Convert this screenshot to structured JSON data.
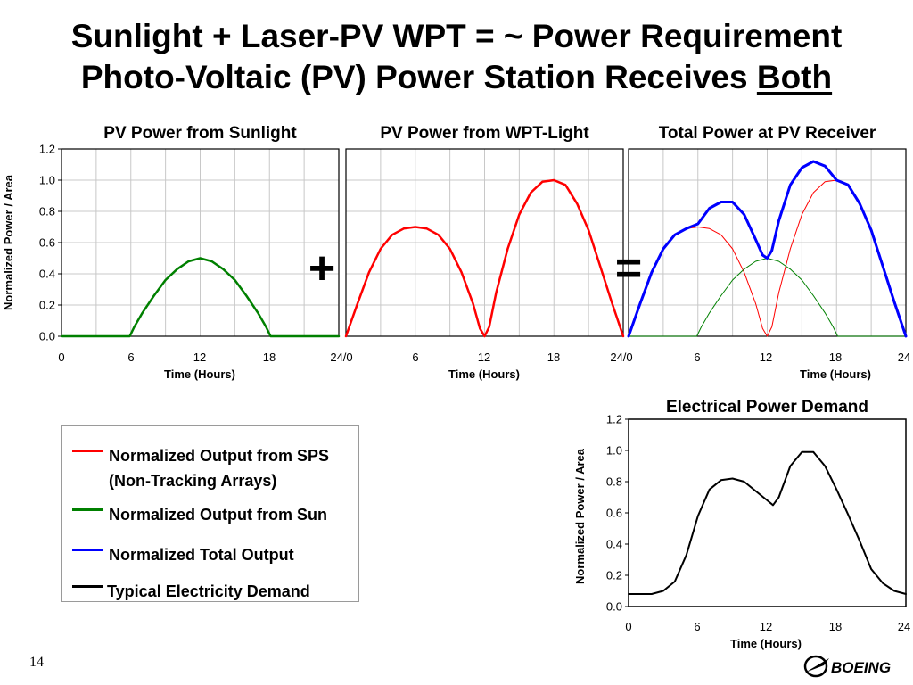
{
  "slide": {
    "title_line1": "Sunlight + Laser-PV WPT = ~ Power Requirement",
    "title_line2_prefix": "Photo-Voltaic (PV) Power Station Receives ",
    "title_line2_emph": "Both",
    "plus_sign": "+",
    "equals_sign": "=",
    "page_number": "14",
    "logo_text": "BOEING",
    "logo_icon": "boeing-logo-icon"
  },
  "legend": {
    "items": [
      {
        "color": "#ff0000",
        "lines": [
          "Normalized Output from SPS",
          "(Non-Tracking Arrays)"
        ]
      },
      {
        "color": "#008000",
        "lines": [
          "Normalized Output from Sun"
        ]
      },
      {
        "color": "#0000ff",
        "lines": [
          "Normalized Total Output"
        ]
      },
      {
        "color": "#000000",
        "lines": [
          "Typical Electricity Demand"
        ]
      }
    ]
  },
  "chart_data": [
    {
      "type": "line",
      "title": "PV Power from Sunlight",
      "xlabel": "Time (Hours)",
      "ylabel": "Normalized Power / Area",
      "xticks": [
        "0",
        "6",
        "12",
        "18",
        "24/0"
      ],
      "yticks": [
        "0.0",
        "0.2",
        "0.4",
        "0.6",
        "0.8",
        "1.0",
        "1.2"
      ],
      "xlim": [
        0,
        24
      ],
      "ylim": [
        0,
        1.2
      ],
      "grid": true,
      "series": [
        {
          "color": "#008000",
          "x": [
            0,
            5.9,
            6.3,
            7,
            8,
            9,
            10,
            11,
            12,
            13,
            14,
            15,
            16,
            17,
            17.7,
            18.1,
            24
          ],
          "y": [
            0,
            0,
            0.06,
            0.15,
            0.26,
            0.36,
            0.43,
            0.48,
            0.5,
            0.48,
            0.43,
            0.36,
            0.26,
            0.15,
            0.06,
            0,
            0
          ]
        }
      ]
    },
    {
      "type": "line",
      "title": "PV Power from WPT-Light",
      "xlabel": "Time (Hours)",
      "ylabel": "",
      "xticks": [
        "6",
        "12",
        "18",
        "24/0"
      ],
      "yticks": [],
      "xlim": [
        0,
        24
      ],
      "ylim": [
        0,
        1.2
      ],
      "grid": true,
      "series": [
        {
          "color": "#ff0000",
          "x": [
            0,
            1,
            2,
            3,
            4,
            5,
            6,
            7,
            8,
            9,
            10,
            11,
            11.6,
            12,
            12.4,
            13,
            14,
            15,
            16,
            17,
            18,
            19,
            20,
            21,
            22,
            23,
            24
          ],
          "y": [
            0,
            0.21,
            0.41,
            0.56,
            0.65,
            0.69,
            0.7,
            0.69,
            0.65,
            0.56,
            0.41,
            0.21,
            0.05,
            0,
            0.06,
            0.28,
            0.56,
            0.78,
            0.92,
            0.99,
            1.0,
            0.97,
            0.85,
            0.68,
            0.45,
            0.22,
            0
          ]
        }
      ]
    },
    {
      "type": "line",
      "title": "Total Power at PV Receiver",
      "xlabel": "Time (Hours)",
      "ylabel": "",
      "xticks": [
        "6",
        "12",
        "18",
        "24"
      ],
      "yticks": [],
      "xlim": [
        0,
        24
      ],
      "ylim": [
        0,
        1.2
      ],
      "grid": true,
      "series": [
        {
          "color": "#ff0000",
          "width": 1,
          "x": [
            0,
            1,
            2,
            3,
            4,
            5,
            6,
            7,
            8,
            9,
            10,
            11,
            11.6,
            12,
            12.4,
            13,
            14,
            15,
            16,
            17,
            18,
            19,
            20,
            21,
            22,
            23,
            24
          ],
          "y": [
            0,
            0.21,
            0.41,
            0.56,
            0.65,
            0.69,
            0.7,
            0.69,
            0.65,
            0.56,
            0.41,
            0.21,
            0.05,
            0,
            0.06,
            0.28,
            0.56,
            0.78,
            0.92,
            0.99,
            1.0,
            0.97,
            0.85,
            0.68,
            0.45,
            0.22,
            0
          ]
        },
        {
          "color": "#008000",
          "width": 1,
          "x": [
            0,
            5.9,
            6.3,
            7,
            8,
            9,
            10,
            11,
            12,
            13,
            14,
            15,
            16,
            17,
            17.7,
            18.1,
            24
          ],
          "y": [
            0,
            0,
            0.06,
            0.15,
            0.26,
            0.36,
            0.43,
            0.48,
            0.5,
            0.48,
            0.43,
            0.36,
            0.26,
            0.15,
            0.06,
            0,
            0
          ]
        },
        {
          "color": "#0000ff",
          "width": 3,
          "x": [
            0,
            1,
            2,
            3,
            4,
            5,
            6,
            7,
            8,
            9,
            10,
            11,
            11.6,
            12,
            12.4,
            13,
            14,
            15,
            16,
            17,
            18,
            19,
            20,
            21,
            22,
            23,
            24
          ],
          "y": [
            0,
            0.21,
            0.41,
            0.56,
            0.65,
            0.69,
            0.72,
            0.82,
            0.86,
            0.86,
            0.78,
            0.62,
            0.52,
            0.5,
            0.55,
            0.74,
            0.97,
            1.08,
            1.12,
            1.09,
            1.0,
            0.97,
            0.85,
            0.68,
            0.45,
            0.22,
            0
          ]
        }
      ]
    },
    {
      "type": "line",
      "title": "Electrical Power Demand",
      "xlabel": "Time (Hours)",
      "ylabel": "Normalized Power / Area",
      "xticks": [
        "0",
        "6",
        "12",
        "18",
        "24"
      ],
      "yticks": [
        "0.0",
        "0.2",
        "0.4",
        "0.6",
        "0.8",
        "1.0",
        "1.2"
      ],
      "xlim": [
        0,
        24
      ],
      "ylim": [
        0,
        1.2
      ],
      "grid": false,
      "series": [
        {
          "color": "#000000",
          "width": 2,
          "x": [
            0,
            1,
            2,
            3,
            4,
            5,
            6,
            7,
            8,
            9,
            10,
            11,
            12,
            12.5,
            13,
            14,
            15,
            16,
            17,
            18,
            19,
            20,
            21,
            22,
            23,
            24
          ],
          "y": [
            0.08,
            0.08,
            0.08,
            0.1,
            0.16,
            0.33,
            0.58,
            0.75,
            0.81,
            0.82,
            0.8,
            0.74,
            0.68,
            0.65,
            0.7,
            0.9,
            0.99,
            0.99,
            0.9,
            0.75,
            0.59,
            0.42,
            0.24,
            0.15,
            0.1,
            0.08
          ]
        }
      ]
    }
  ]
}
